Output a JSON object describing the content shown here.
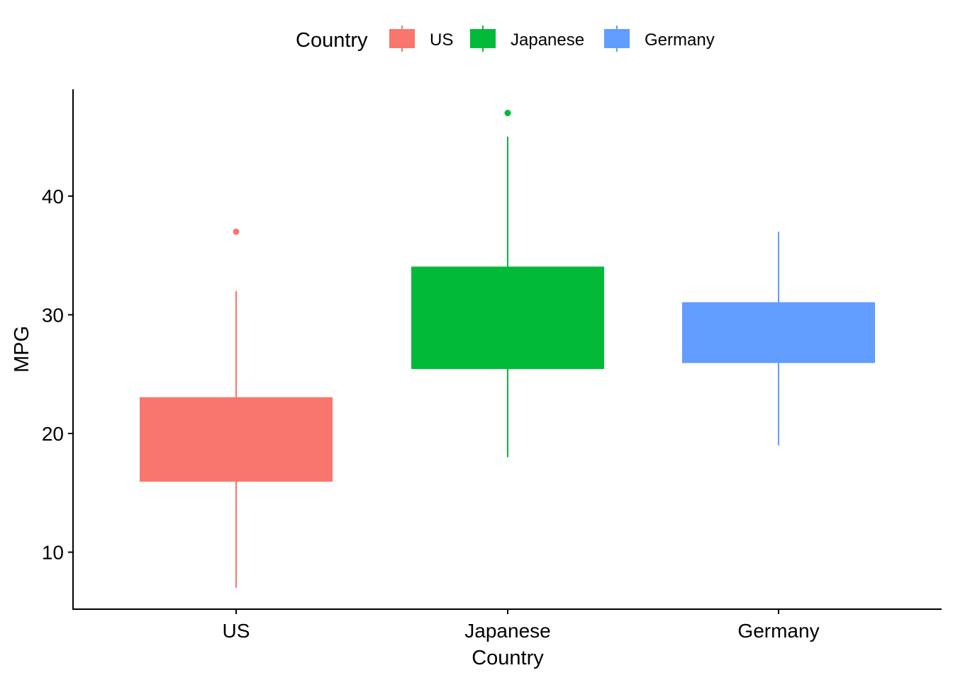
{
  "chart_data": {
    "type": "box",
    "xlabel": "Country",
    "ylabel": "MPG",
    "ylim": [
      5.2,
      49.0
    ],
    "yticks": [
      10,
      20,
      30,
      40
    ],
    "categories": [
      "US",
      "Japanese",
      "Germany"
    ],
    "legend": {
      "title": "Country",
      "position": "top"
    },
    "grid": false,
    "series": [
      {
        "name": "US",
        "color": "#F8766D",
        "whisker_low": 7,
        "q1": 16,
        "median": 16,
        "q3": 23,
        "whisker_high": 32,
        "outliers": [
          37
        ]
      },
      {
        "name": "Japanese",
        "color": "#00BA38",
        "whisker_low": 18,
        "q1": 25.5,
        "median": 25.5,
        "q3": 34,
        "whisker_high": 45,
        "outliers": [
          47
        ]
      },
      {
        "name": "Germany",
        "color": "#619CFF",
        "whisker_low": 19,
        "q1": 26,
        "median": 26,
        "q3": 31,
        "whisker_high": 37,
        "outliers": []
      }
    ]
  }
}
